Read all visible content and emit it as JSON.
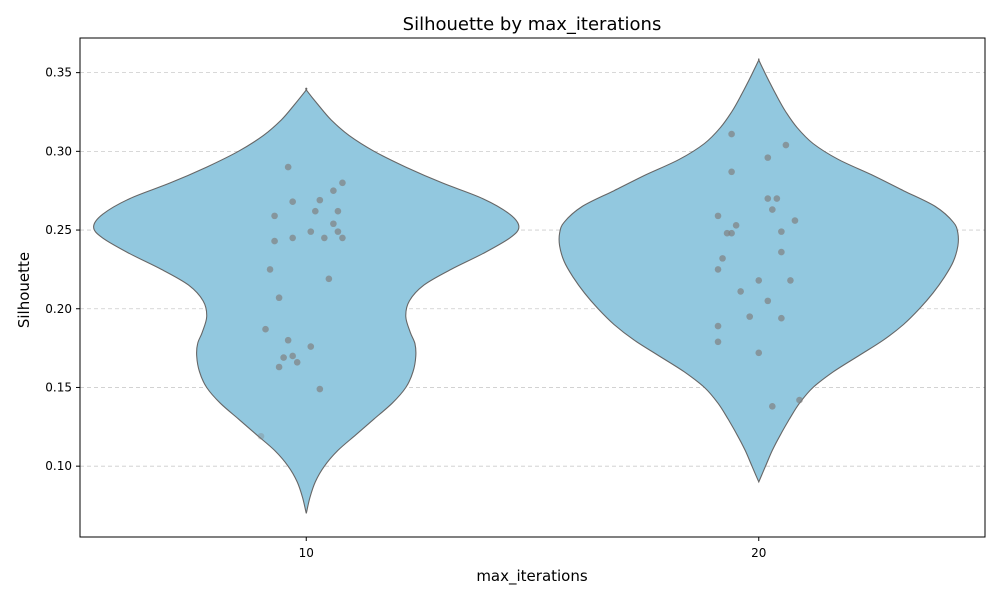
{
  "chart_data": {
    "type": "violin",
    "title": "Silhouette by max_iterations",
    "xlabel": "max_iterations",
    "ylabel": "Silhouette",
    "categories": [
      "10",
      "20"
    ],
    "ylim": [
      0.055,
      0.372
    ],
    "yticks": [
      0.1,
      0.15,
      0.2,
      0.25,
      0.3,
      0.35
    ],
    "ytick_labels": [
      "0.10",
      "0.15",
      "0.20",
      "0.25",
      "0.30",
      "0.35"
    ],
    "grid": "y-dashed",
    "violin_color": "#92c8df",
    "violin_edge_color": "#666666",
    "point_color": "#808080",
    "violins": [
      {
        "category": "10",
        "min": 0.07,
        "max": 0.339,
        "halfwidth_profile": [
          [
            0.07,
            0.0
          ],
          [
            0.08,
            0.008
          ],
          [
            0.09,
            0.02
          ],
          [
            0.1,
            0.04
          ],
          [
            0.11,
            0.07
          ],
          [
            0.12,
            0.11
          ],
          [
            0.13,
            0.15
          ],
          [
            0.14,
            0.19
          ],
          [
            0.15,
            0.22
          ],
          [
            0.16,
            0.236
          ],
          [
            0.17,
            0.242
          ],
          [
            0.178,
            0.24
          ],
          [
            0.185,
            0.23
          ],
          [
            0.195,
            0.22
          ],
          [
            0.205,
            0.228
          ],
          [
            0.215,
            0.26
          ],
          [
            0.225,
            0.32
          ],
          [
            0.235,
            0.39
          ],
          [
            0.245,
            0.45
          ],
          [
            0.252,
            0.47
          ],
          [
            0.26,
            0.45
          ],
          [
            0.27,
            0.39
          ],
          [
            0.28,
            0.3
          ],
          [
            0.29,
            0.22
          ],
          [
            0.3,
            0.15
          ],
          [
            0.31,
            0.095
          ],
          [
            0.32,
            0.055
          ],
          [
            0.33,
            0.025
          ],
          [
            0.339,
            0.0
          ]
        ],
        "points": [
          {
            "y": 0.29,
            "dx": -0.04
          },
          {
            "y": 0.28,
            "dx": 0.08
          },
          {
            "y": 0.275,
            "dx": 0.06
          },
          {
            "y": 0.269,
            "dx": 0.03
          },
          {
            "y": 0.268,
            "dx": -0.03
          },
          {
            "y": 0.262,
            "dx": 0.02
          },
          {
            "y": 0.262,
            "dx": 0.07
          },
          {
            "y": 0.259,
            "dx": -0.07
          },
          {
            "y": 0.254,
            "dx": 0.06
          },
          {
            "y": 0.249,
            "dx": 0.01
          },
          {
            "y": 0.249,
            "dx": 0.07
          },
          {
            "y": 0.245,
            "dx": 0.08
          },
          {
            "y": 0.245,
            "dx": -0.03
          },
          {
            "y": 0.245,
            "dx": 0.04
          },
          {
            "y": 0.243,
            "dx": -0.07
          },
          {
            "y": 0.225,
            "dx": -0.08
          },
          {
            "y": 0.219,
            "dx": 0.05
          },
          {
            "y": 0.207,
            "dx": -0.06
          },
          {
            "y": 0.187,
            "dx": -0.09
          },
          {
            "y": 0.18,
            "dx": -0.04
          },
          {
            "y": 0.176,
            "dx": 0.01
          },
          {
            "y": 0.17,
            "dx": -0.03
          },
          {
            "y": 0.169,
            "dx": -0.05
          },
          {
            "y": 0.166,
            "dx": -0.02
          },
          {
            "y": 0.163,
            "dx": -0.06
          },
          {
            "y": 0.149,
            "dx": 0.03
          },
          {
            "y": 0.119,
            "dx": -0.1,
            "faint": true
          }
        ]
      },
      {
        "category": "20",
        "min": 0.09,
        "max": 0.358,
        "halfwidth_profile": [
          [
            0.09,
            0.0
          ],
          [
            0.1,
            0.015
          ],
          [
            0.11,
            0.03
          ],
          [
            0.12,
            0.048
          ],
          [
            0.13,
            0.068
          ],
          [
            0.14,
            0.09
          ],
          [
            0.15,
            0.12
          ],
          [
            0.16,
            0.165
          ],
          [
            0.17,
            0.22
          ],
          [
            0.18,
            0.275
          ],
          [
            0.19,
            0.32
          ],
          [
            0.2,
            0.355
          ],
          [
            0.21,
            0.385
          ],
          [
            0.22,
            0.41
          ],
          [
            0.23,
            0.43
          ],
          [
            0.24,
            0.44
          ],
          [
            0.248,
            0.44
          ],
          [
            0.255,
            0.43
          ],
          [
            0.265,
            0.39
          ],
          [
            0.275,
            0.32
          ],
          [
            0.285,
            0.25
          ],
          [
            0.295,
            0.175
          ],
          [
            0.305,
            0.12
          ],
          [
            0.315,
            0.085
          ],
          [
            0.325,
            0.06
          ],
          [
            0.335,
            0.04
          ],
          [
            0.345,
            0.022
          ],
          [
            0.352,
            0.01
          ],
          [
            0.358,
            0.0
          ]
        ],
        "points": [
          {
            "y": 0.311,
            "dx": -0.06
          },
          {
            "y": 0.304,
            "dx": 0.06
          },
          {
            "y": 0.296,
            "dx": 0.02
          },
          {
            "y": 0.287,
            "dx": -0.06
          },
          {
            "y": 0.27,
            "dx": 0.02
          },
          {
            "y": 0.27,
            "dx": 0.04
          },
          {
            "y": 0.263,
            "dx": 0.03
          },
          {
            "y": 0.259,
            "dx": -0.09
          },
          {
            "y": 0.256,
            "dx": 0.08
          },
          {
            "y": 0.253,
            "dx": -0.05
          },
          {
            "y": 0.249,
            "dx": 0.05
          },
          {
            "y": 0.248,
            "dx": -0.06
          },
          {
            "y": 0.248,
            "dx": -0.07
          },
          {
            "y": 0.236,
            "dx": 0.05
          },
          {
            "y": 0.232,
            "dx": -0.08
          },
          {
            "y": 0.225,
            "dx": -0.09
          },
          {
            "y": 0.218,
            "dx": 0.07
          },
          {
            "y": 0.218,
            "dx": 0.0
          },
          {
            "y": 0.211,
            "dx": -0.04
          },
          {
            "y": 0.205,
            "dx": 0.02
          },
          {
            "y": 0.195,
            "dx": -0.02
          },
          {
            "y": 0.194,
            "dx": 0.05
          },
          {
            "y": 0.189,
            "dx": -0.09
          },
          {
            "y": 0.179,
            "dx": -0.09
          },
          {
            "y": 0.172,
            "dx": 0.0
          },
          {
            "y": 0.142,
            "dx": 0.09
          },
          {
            "y": 0.138,
            "dx": 0.03
          }
        ]
      }
    ]
  }
}
